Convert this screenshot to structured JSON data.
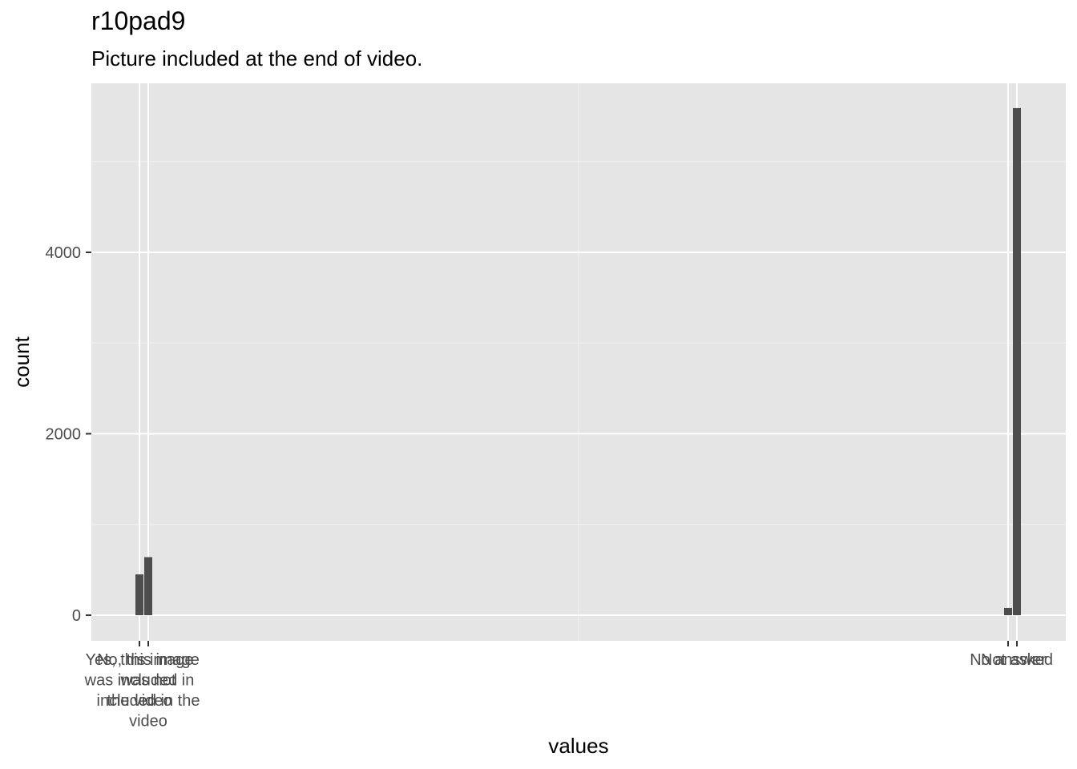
{
  "chart_data": {
    "type": "bar",
    "title": "r10pad9",
    "subtitle": "Picture included at the end of video.",
    "xlabel": "values",
    "ylabel": "count",
    "ylim": [
      -280,
      5880
    ],
    "yticks": [
      0,
      2000,
      4000
    ],
    "grid": true,
    "categories": [
      "Yes, this image was included in the video",
      "No, this image was not included in the video",
      "No answer",
      "Not asked"
    ],
    "values": [
      450,
      640,
      80,
      5590
    ]
  }
}
